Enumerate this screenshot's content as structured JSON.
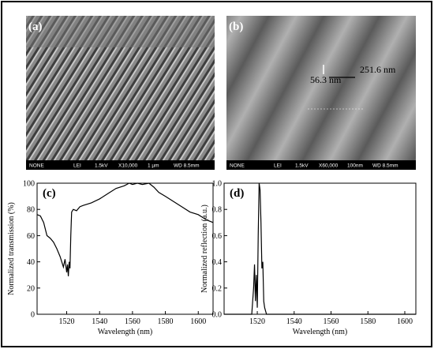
{
  "images": [
    {
      "label": "(a)",
      "info": [
        "NONE",
        "LEI",
        "1.5kV",
        "X10,000",
        "1 µm",
        "WD 8.5mm"
      ],
      "annotations": []
    },
    {
      "label": "(b)",
      "info": [
        "NONE",
        "LEI",
        "1.5kV",
        "X60,000",
        "100nm",
        "WD 8.5mm"
      ],
      "annotations": [
        "56.3 nm",
        "251.6 nm"
      ]
    }
  ],
  "chart_data": [
    {
      "type": "line",
      "label": "(c)",
      "xlabel": "Wavelength (nm)",
      "ylabel": "Normalized transmission (%)",
      "color": "#000000",
      "x": [
        1502,
        1504,
        1506,
        1508,
        1510,
        1512,
        1514,
        1516,
        1517,
        1518,
        1519,
        1520,
        1520.5,
        1521,
        1521.5,
        1522,
        1522.5,
        1523,
        1524,
        1526,
        1528,
        1530,
        1535,
        1540,
        1545,
        1550,
        1555,
        1558,
        1560,
        1563,
        1566,
        1570,
        1573,
        1576,
        1580,
        1585,
        1590,
        1595,
        1600,
        1605,
        1609
      ],
      "values": [
        76,
        75,
        70,
        60,
        58,
        55,
        50,
        44,
        40,
        36,
        42,
        32,
        38,
        29,
        40,
        35,
        60,
        78,
        80,
        79,
        82,
        83,
        85,
        88,
        92,
        96,
        98,
        100,
        99,
        100,
        99,
        100,
        97,
        93,
        90,
        86,
        82,
        78,
        76,
        72,
        70
      ],
      "xlim": [
        1502,
        1609
      ],
      "ylim": [
        0,
        100
      ],
      "xticks": [
        1520,
        1540,
        1560,
        1580,
        1600
      ],
      "yticks": [
        0,
        20,
        40,
        60,
        80,
        100
      ]
    },
    {
      "type": "line",
      "label": "(d)",
      "xlabel": "Wavelength (nm)",
      "ylabel": "Normalized reflection (a.u.)",
      "color": "#000000",
      "x": [
        1502,
        1517,
        1518,
        1518.5,
        1519,
        1519.5,
        1520,
        1520.5,
        1521,
        1521.5,
        1522,
        1522.5,
        1523,
        1523.5,
        1524,
        1525,
        1606
      ],
      "values": [
        0,
        0,
        0.2,
        0.38,
        0.1,
        0.3,
        0.05,
        0.6,
        1.0,
        0.95,
        0.7,
        0.35,
        0.4,
        0.1,
        0.05,
        0,
        0
      ],
      "xlim": [
        1502,
        1606
      ],
      "ylim": [
        0,
        1.0
      ],
      "xticks": [
        1520,
        1540,
        1560,
        1580,
        1600
      ],
      "yticks": [
        {
          "value": 0,
          "label": "0.0"
        },
        0.2,
        0.4,
        0.6,
        0.8,
        {
          "value": 1,
          "label": "1.0"
        }
      ]
    }
  ]
}
